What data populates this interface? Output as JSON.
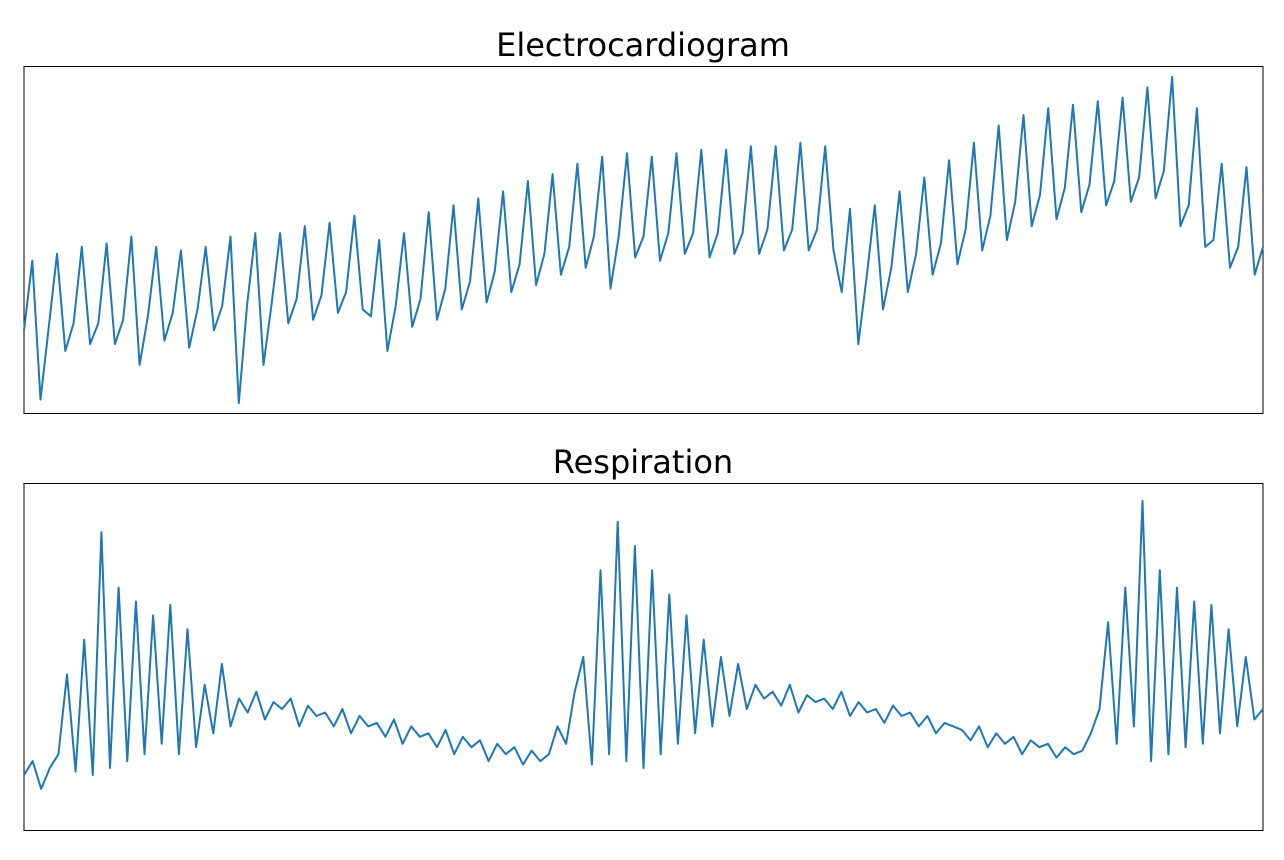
{
  "chart_data": [
    {
      "type": "line",
      "title": "Electrocardiogram",
      "color": "#1f77b4",
      "ylim": [
        0,
        100
      ],
      "values": [
        24,
        44,
        4,
        25,
        46,
        18,
        26,
        48,
        20,
        26,
        49,
        20,
        27,
        51,
        14,
        28,
        48,
        21,
        29,
        47,
        19,
        30,
        48,
        24,
        31,
        51,
        3,
        31,
        52,
        14,
        32,
        52,
        26,
        33,
        54,
        27,
        34,
        55,
        29,
        35,
        57,
        30,
        28,
        50,
        18,
        31,
        52,
        25,
        33,
        58,
        27,
        36,
        60,
        30,
        38,
        62,
        32,
        41,
        64,
        35,
        43,
        67,
        37,
        46,
        69,
        40,
        48,
        72,
        42,
        51,
        74,
        36,
        51,
        75,
        45,
        51,
        74,
        44,
        52,
        75,
        46,
        52,
        76,
        45,
        52,
        76,
        46,
        52,
        77,
        46,
        53,
        77,
        47,
        53,
        78,
        47,
        53,
        77,
        47,
        35,
        59,
        20,
        39,
        60,
        30,
        42,
        64,
        35,
        46,
        68,
        40,
        49,
        73,
        43,
        53,
        78,
        47,
        57,
        83,
        50,
        61,
        86,
        54,
        63,
        88,
        56,
        65,
        89,
        58,
        66,
        90,
        60,
        67,
        91,
        61,
        68,
        94,
        62,
        70,
        97,
        54,
        60,
        88,
        48,
        50,
        72,
        42,
        48,
        71,
        40,
        48
      ]
    },
    {
      "type": "line",
      "title": "Respiration",
      "color": "#1f77b4",
      "ylim": [
        0,
        100
      ],
      "values": [
        16,
        20,
        12,
        18,
        22,
        45,
        17,
        55,
        16,
        86,
        18,
        70,
        20,
        66,
        22,
        62,
        25,
        65,
        22,
        58,
        24,
        42,
        28,
        48,
        30,
        38,
        34,
        40,
        32,
        37,
        35,
        38,
        30,
        36,
        33,
        34,
        30,
        35,
        28,
        33,
        30,
        31,
        27,
        32,
        25,
        30,
        27,
        28,
        24,
        29,
        22,
        27,
        24,
        26,
        20,
        25,
        22,
        24,
        19,
        23,
        20,
        22,
        30,
        25,
        40,
        50,
        19,
        75,
        22,
        89,
        20,
        82,
        18,
        75,
        22,
        68,
        25,
        62,
        28,
        55,
        30,
        50,
        33,
        48,
        35,
        42,
        38,
        40,
        36,
        42,
        34,
        39,
        37,
        38,
        35,
        40,
        33,
        37,
        34,
        35,
        31,
        36,
        33,
        34,
        30,
        33,
        28,
        31,
        30,
        29,
        26,
        30,
        24,
        28,
        25,
        27,
        22,
        26,
        24,
        25,
        21,
        24,
        22,
        23,
        28,
        35,
        60,
        25,
        70,
        30,
        95,
        20,
        75,
        22,
        70,
        24,
        66,
        25,
        65,
        28,
        58,
        30,
        50,
        32,
        35
      ]
    }
  ]
}
